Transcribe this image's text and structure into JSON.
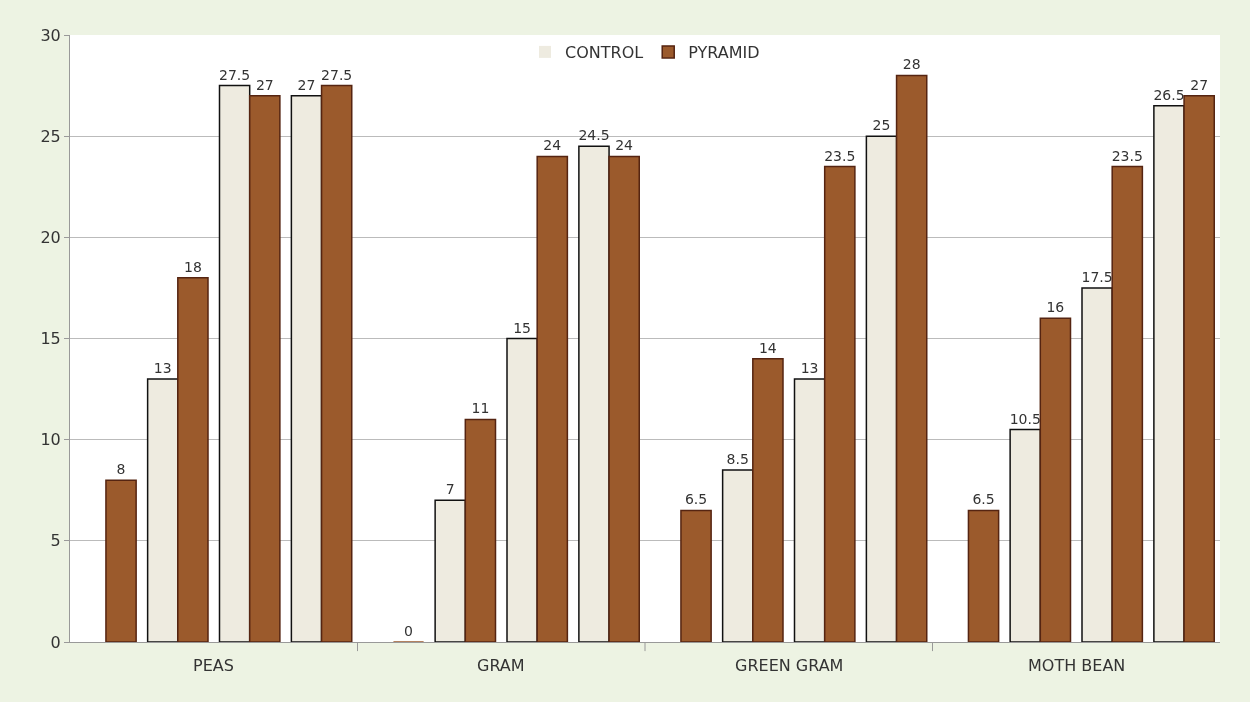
{
  "chart_data": {
    "type": "bar",
    "categories": [
      null,
      null,
      null,
      null,
      null,
      null,
      null,
      null,
      null,
      null,
      null,
      null,
      null,
      null,
      null,
      null
    ],
    "annotations": [
      "PEAS",
      "GRAM",
      "GREEN GRAM",
      "MOTH BEAN"
    ],
    "series": [
      {
        "name": "CONTROL",
        "color": "#eeebe0",
        "values": [
          null,
          13,
          27.5,
          27,
          null,
          7,
          15,
          24.5,
          null,
          8.5,
          13,
          25,
          null,
          10.5,
          17.5,
          26.5
        ]
      },
      {
        "name": "PYRAMID",
        "color": "#9b5a2c",
        "values": [
          8,
          18,
          27,
          27.5,
          0,
          11,
          24,
          24,
          6.5,
          14,
          23.5,
          28,
          6.5,
          16,
          23.5,
          27
        ]
      }
    ],
    "ylim": [
      0,
      30
    ],
    "yticks": [
      0,
      5,
      10,
      15,
      20,
      25,
      30
    ],
    "grid": "y",
    "legend": "top",
    "data_labels": true
  }
}
